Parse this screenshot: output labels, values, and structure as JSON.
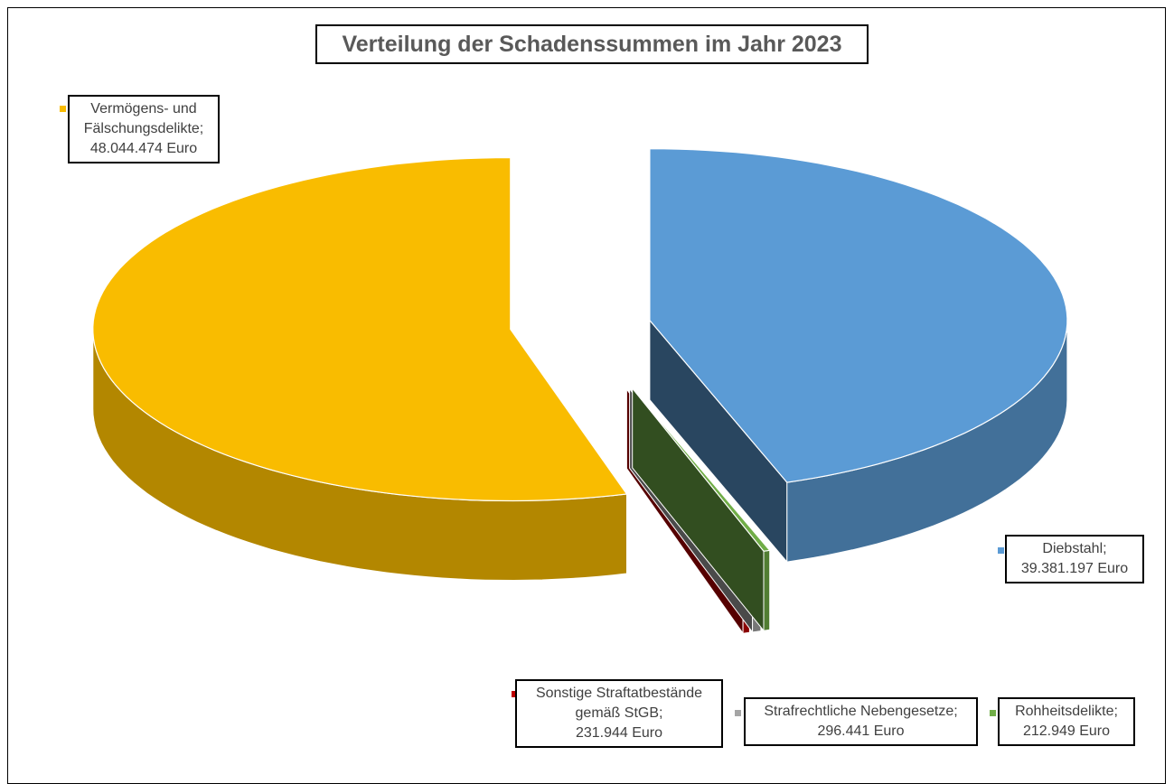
{
  "chart_data": {
    "type": "pie3d",
    "title": "Verteilung der Schadenssummen im Jahr 2023",
    "categories": [
      "Diebstahl;",
      "Rohheitsdelikte;",
      "Strafrechtliche Nebengesetze;",
      "Sonstige Straftatbestände gemäß StGB;",
      "Vermögens- und Fälschungsdelikte;"
    ],
    "values": [
      39381197,
      212949,
      296441,
      231944,
      48044474
    ],
    "value_labels": [
      "39.381.197 Euro",
      "212.949 Euro",
      "296.441 Euro",
      "231.944 Euro",
      "48.044.474 Euro"
    ],
    "colors": [
      "#5b9bd5",
      "#70ad47",
      "#a5a5a5",
      "#c00000",
      "#f9bc00"
    ]
  }
}
